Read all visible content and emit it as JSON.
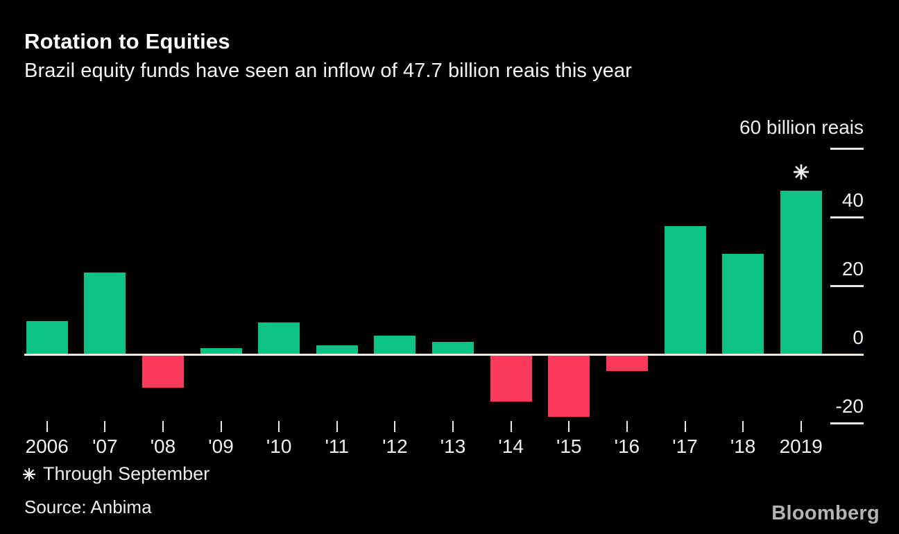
{
  "header": {
    "title": "Rotation to Equities",
    "subtitle": "Brazil equity funds have seen an inflow of 47.7 billion reais this year"
  },
  "chart_data": {
    "type": "bar",
    "title": "Rotation to Equities",
    "subtitle": "Brazil equity funds have seen an inflow of 47.7 billion reais this year",
    "unit": "billion reais",
    "categories": [
      "2006",
      "'07",
      "'08",
      "'09",
      "'10",
      "'11",
      "'12",
      "'13",
      "'14",
      "'15",
      "'16",
      "'17",
      "'18",
      "2019"
    ],
    "values": [
      9.6,
      23.8,
      -9.4,
      1.9,
      9.3,
      2.6,
      5.5,
      3.7,
      -13.4,
      -17.8,
      -4.5,
      37.4,
      29.3,
      47.7
    ],
    "y_ticks": [
      {
        "value": 60,
        "label": "60 billion reais"
      },
      {
        "value": 40,
        "label": "40"
      },
      {
        "value": 20,
        "label": "20"
      },
      {
        "value": 0,
        "label": "0"
      },
      {
        "value": -20,
        "label": "-20"
      }
    ],
    "ylim": [
      -25,
      62
    ],
    "grid": false,
    "legend": "none",
    "xlabel": "",
    "ylabel": "billion reais",
    "annotation": {
      "category": "2019",
      "symbol": "*",
      "meaning": "Through September"
    },
    "colors": {
      "positive_bar": "#0ec184",
      "negative_bar": "#fb395c",
      "axis_line": "#efe9e2",
      "tick_line": "#e8e6e2",
      "text": "#f1f1f1",
      "background": "#000000"
    }
  },
  "footer": {
    "footnote": "Through September",
    "source": "Source: Anbima",
    "logo_text": "Bloomberg"
  }
}
